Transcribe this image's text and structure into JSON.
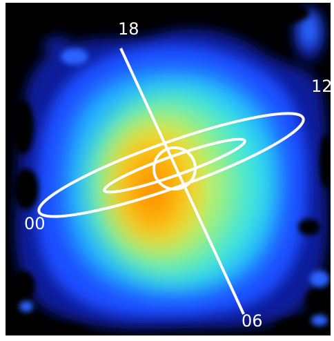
{
  "hour_labels": {
    "top": "18",
    "right": "12",
    "left": "00",
    "bottom": "06"
  },
  "colors": {
    "background": "#000000",
    "overlay": "#ffffff",
    "colormap": [
      "#000a6e",
      "#1e46ff",
      "#1ea0ff",
      "#28dcf5",
      "#8cf090",
      "#f0ea3c",
      "#ffb000",
      "#ff8a00"
    ]
  }
}
